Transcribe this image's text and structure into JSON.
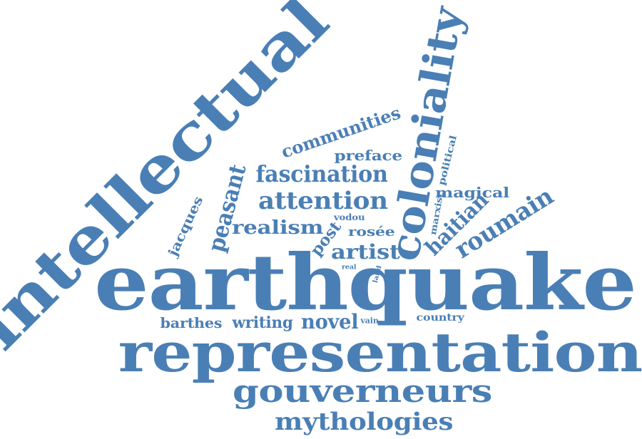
{
  "color": "#4a7fb5",
  "words": [
    {
      "id": "earthquake",
      "text": "earthquake"
    },
    {
      "id": "representation",
      "text": "representation"
    },
    {
      "id": "intellectual",
      "text": "intellectual"
    },
    {
      "id": "coloniality",
      "text": "coloniality"
    },
    {
      "id": "gouverneurs",
      "text": "gouverneurs"
    },
    {
      "id": "mythologies",
      "text": "mythologies"
    },
    {
      "id": "roumain",
      "text": "roumain"
    },
    {
      "id": "fascination",
      "text": "fascination"
    },
    {
      "id": "attention",
      "text": "attention"
    },
    {
      "id": "haitian",
      "text": "haitian"
    },
    {
      "id": "communities",
      "text": "communities"
    },
    {
      "id": "peasant",
      "text": "peasant"
    },
    {
      "id": "realism",
      "text": "realism"
    },
    {
      "id": "artist",
      "text": "artist"
    },
    {
      "id": "post",
      "text": "post"
    },
    {
      "id": "magical",
      "text": "magical"
    },
    {
      "id": "preface",
      "text": "preface"
    },
    {
      "id": "novel",
      "text": "novel"
    },
    {
      "id": "writing",
      "text": "writing"
    },
    {
      "id": "barthes",
      "text": "barthes"
    },
    {
      "id": "jacques",
      "text": "jacques"
    },
    {
      "id": "rosee",
      "text": "rosée"
    },
    {
      "id": "political",
      "text": "political"
    },
    {
      "id": "country",
      "text": "country"
    },
    {
      "id": "vodou",
      "text": "vodou"
    },
    {
      "id": "marxist",
      "text": "marxist"
    },
    {
      "id": "vain",
      "text": "vain"
    },
    {
      "id": "land",
      "text": "land"
    },
    {
      "id": "real",
      "text": "real"
    }
  ]
}
